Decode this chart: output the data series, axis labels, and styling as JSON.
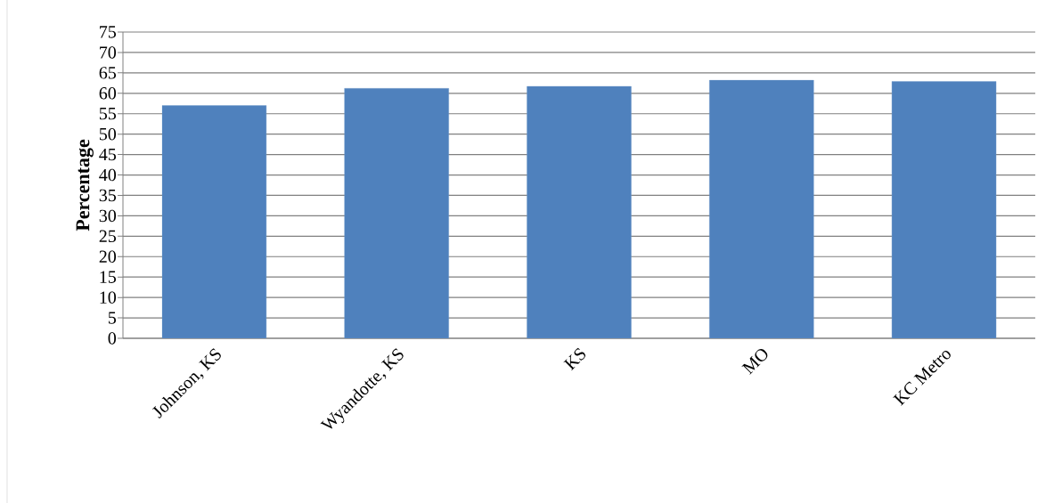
{
  "chart_data": {
    "type": "bar",
    "ylabel": "Percentage",
    "categories": [
      "Johnson, KS",
      "Wyandotte, KS",
      "KS",
      "MO",
      "KC Metro"
    ],
    "values": [
      57.0,
      61.2,
      61.7,
      63.2,
      62.9
    ],
    "color": "#4f81bd",
    "ylim": [
      0,
      75
    ],
    "yticks": [
      0,
      5,
      10,
      15,
      20,
      25,
      30,
      35,
      40,
      45,
      50,
      55,
      60,
      65,
      70,
      75
    ],
    "grid": "y"
  }
}
